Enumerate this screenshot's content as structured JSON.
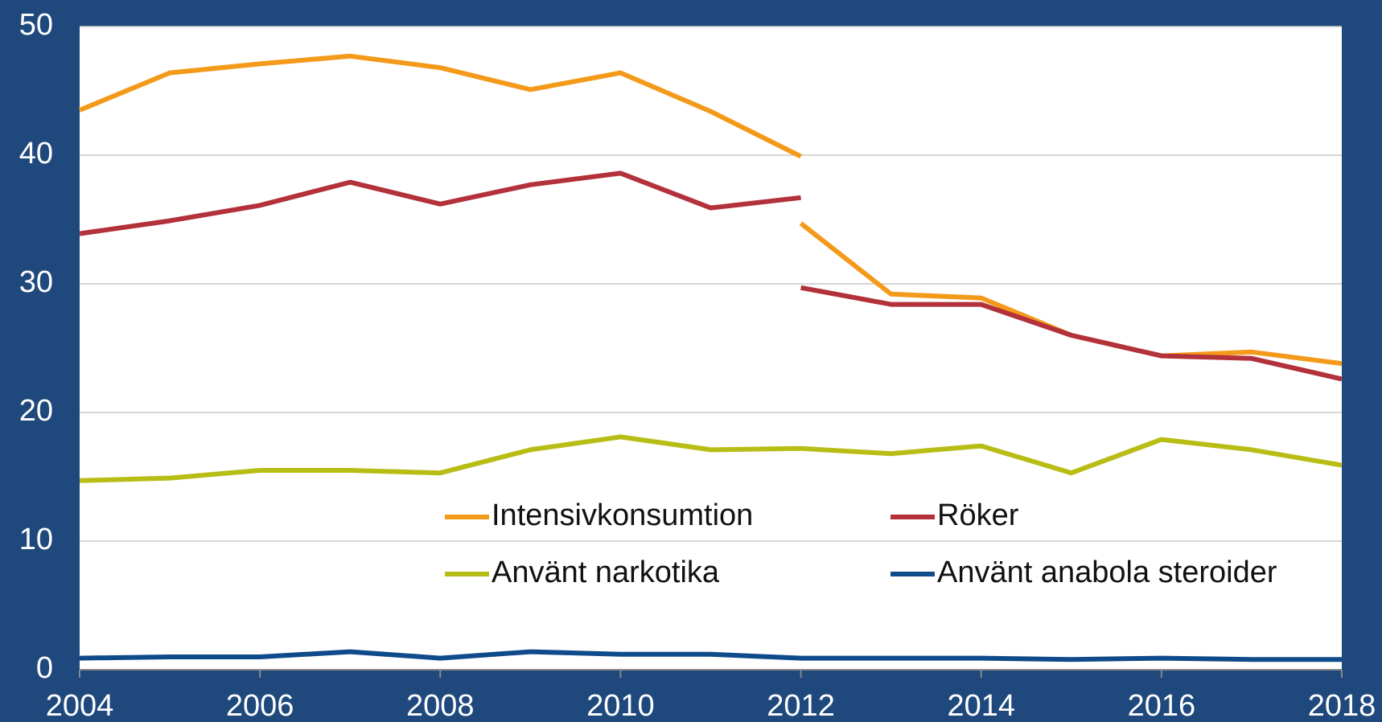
{
  "chart_data": {
    "type": "line",
    "xlim": [
      2004,
      2018
    ],
    "xticks": [
      2004,
      2006,
      2008,
      2010,
      2012,
      2014,
      2016,
      2018
    ],
    "ylim": [
      0,
      50
    ],
    "yticks": [
      0,
      10,
      20,
      30,
      40,
      50
    ],
    "grid": true,
    "series": [
      {
        "name": "Intensivkonsumtion",
        "color": "#f39a1b",
        "x": [
          2004,
          2005,
          2006,
          2007,
          2008,
          2009,
          2010,
          2011,
          2012,
          2012,
          2012,
          2013,
          2014,
          2015,
          2016,
          2017,
          2018
        ],
        "values": [
          43.5,
          46.4,
          47.1,
          47.7,
          46.8,
          45.1,
          46.4,
          43.4,
          39.9,
          null,
          34.7,
          29.2,
          28.9,
          26.0,
          24.4,
          24.7,
          23.8
        ]
      },
      {
        "name": "Röker",
        "color": "#b3313a",
        "x": [
          2004,
          2005,
          2006,
          2007,
          2008,
          2009,
          2010,
          2011,
          2012,
          2012,
          2012,
          2013,
          2014,
          2015,
          2016,
          2017,
          2018
        ],
        "values": [
          33.9,
          34.9,
          36.1,
          37.9,
          36.2,
          37.7,
          38.6,
          35.9,
          36.7,
          null,
          29.7,
          28.4,
          28.4,
          26.0,
          24.4,
          24.2,
          22.6
        ]
      },
      {
        "name": "Använt narkotika",
        "color": "#b8bd16",
        "x": [
          2004,
          2005,
          2006,
          2007,
          2008,
          2009,
          2010,
          2011,
          2012,
          2013,
          2014,
          2015,
          2016,
          2017,
          2018
        ],
        "values": [
          14.7,
          14.9,
          15.5,
          15.5,
          15.3,
          17.1,
          18.1,
          17.1,
          17.2,
          16.8,
          17.4,
          15.3,
          17.9,
          17.1,
          15.9
        ]
      },
      {
        "name": "Använt anabola steroider",
        "color": "#0f4a8a",
        "x": [
          2004,
          2005,
          2006,
          2007,
          2008,
          2009,
          2010,
          2011,
          2012,
          2013,
          2014,
          2015,
          2016,
          2017,
          2018
        ],
        "values": [
          0.9,
          1.0,
          1.0,
          1.4,
          0.9,
          1.4,
          1.2,
          1.2,
          0.9,
          0.9,
          0.9,
          0.8,
          0.9,
          0.8,
          0.8
        ]
      }
    ]
  }
}
